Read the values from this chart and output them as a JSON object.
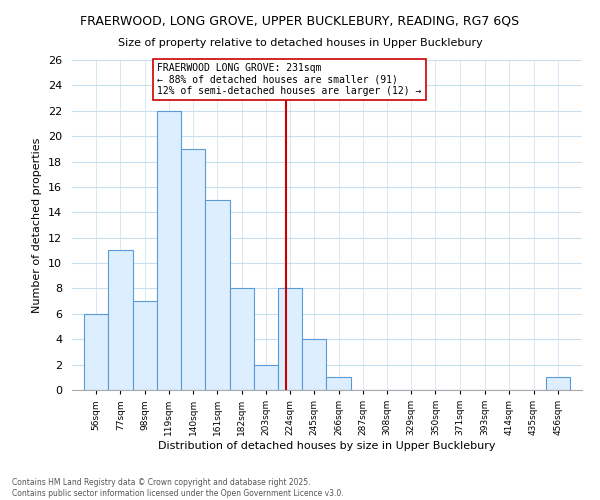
{
  "title1": "FRAERWOOD, LONG GROVE, UPPER BUCKLEBURY, READING, RG7 6QS",
  "title2": "Size of property relative to detached houses in Upper Bucklebury",
  "xlabel": "Distribution of detached houses by size in Upper Bucklebury",
  "ylabel": "Number of detached properties",
  "bin_edges": [
    56,
    77,
    98,
    119,
    140,
    161,
    182,
    203,
    224,
    245,
    266,
    287,
    308,
    329,
    350,
    371,
    393,
    414,
    435,
    456,
    477
  ],
  "counts": [
    6,
    11,
    7,
    22,
    19,
    15,
    8,
    2,
    8,
    4,
    1,
    0,
    0,
    0,
    0,
    0,
    0,
    0,
    0,
    1
  ],
  "bar_color": "#ddeeff",
  "bar_edge_color": "#5b9bd5",
  "grid_color": "#c8dff0",
  "vline_x": 231,
  "vline_color": "#cc0000",
  "box_text_line1": "FRAERWOOD LONG GROVE: 231sqm",
  "box_text_line2": "← 88% of detached houses are smaller (91)",
  "box_text_line3": "12% of semi-detached houses are larger (12) →",
  "box_edge_color": "#cc0000",
  "ylim": [
    0,
    26
  ],
  "yticks": [
    0,
    2,
    4,
    6,
    8,
    10,
    12,
    14,
    16,
    18,
    20,
    22,
    24,
    26
  ],
  "footnote1": "Contains HM Land Registry data © Crown copyright and database right 2025.",
  "footnote2": "Contains public sector information licensed under the Open Government Licence v3.0.",
  "bg_color": "#ffffff"
}
